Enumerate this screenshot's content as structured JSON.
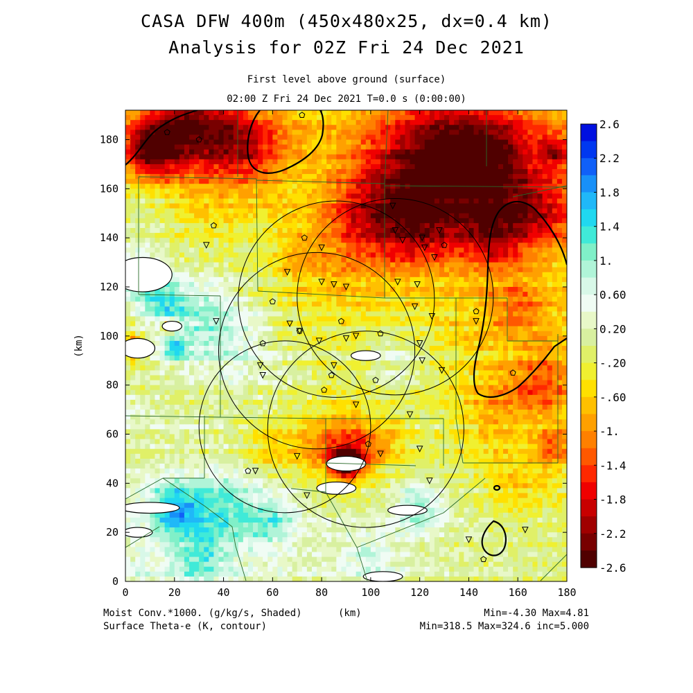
{
  "header": {
    "title_line1": "CASA DFW 400m (450x480x25, dx=0.4 km)",
    "title_line2": "Analysis for 02Z Fri 24 Dec 2021",
    "subtitle_line1": "First level above ground (surface)",
    "subtitle_line2": "02:00 Z Fri 24 Dec 2021    T=0.0 s (0:00:00)"
  },
  "footer": {
    "shaded_label": "Moist Conv.*1000. (g/kg/s, Shaded)",
    "contour_label": "Surface Theta-e (K, contour)",
    "x_unit": "(km)",
    "shaded_minmax": "Min=-4.30 Max=4.81",
    "contour_minmax": "Min=318.5 Max=324.6 inc=5.000"
  },
  "chart_data": {
    "type": "heatmap",
    "xlabel": "",
    "ylabel": "(km)",
    "xlim": [
      0,
      180
    ],
    "ylim": [
      0,
      192
    ],
    "x_ticks": [
      0,
      20,
      40,
      60,
      80,
      100,
      120,
      140,
      160,
      180
    ],
    "y_ticks": [
      0,
      20,
      40,
      60,
      80,
      100,
      120,
      140,
      160,
      180
    ],
    "colorbar": {
      "labels": [
        "2.6",
        "2.2",
        "1.8",
        "1.4",
        "1.",
        "0.60",
        "0.20",
        "-.20",
        "-.60",
        "-1.",
        "-1.4",
        "-1.8",
        "-2.2",
        "-2.6"
      ],
      "colors": [
        "#0010e0",
        "#0038f0",
        "#1060f8",
        "#1890f8",
        "#20b8f8",
        "#20d8f0",
        "#40ead8",
        "#80f0c8",
        "#b0f4d8",
        "#d8f8e8",
        "#f0fcf4",
        "#e8f8c8",
        "#d8f0a0",
        "#e0f068",
        "#f0f030",
        "#ffe000",
        "#ffc000",
        "#ffa000",
        "#ff8000",
        "#ff5800",
        "#ff2800",
        "#f00000",
        "#c80000",
        "#a00000",
        "#780000",
        "#500000"
      ]
    },
    "radar_rings_center_radius": [
      [
        86,
        115,
        40
      ],
      [
        65,
        63,
        35
      ],
      [
        78,
        94,
        40
      ],
      [
        110,
        116,
        40
      ],
      [
        98,
        62,
        40
      ]
    ],
    "stations_triangle": [
      [
        109,
        153
      ],
      [
        110,
        143
      ],
      [
        113,
        139
      ],
      [
        121,
        140
      ],
      [
        122,
        136
      ],
      [
        128,
        143
      ],
      [
        126,
        132
      ],
      [
        80,
        136
      ],
      [
        33,
        137
      ],
      [
        66,
        126
      ],
      [
        80,
        122
      ],
      [
        85,
        121
      ],
      [
        90,
        120
      ],
      [
        111,
        122
      ],
      [
        119,
        121
      ],
      [
        118,
        112
      ],
      [
        125,
        108
      ],
      [
        143,
        106
      ],
      [
        67,
        105
      ],
      [
        71,
        102
      ],
      [
        120,
        97
      ],
      [
        121,
        90
      ],
      [
        129,
        86
      ],
      [
        37,
        106
      ],
      [
        55,
        88
      ],
      [
        56,
        84
      ],
      [
        79,
        98
      ],
      [
        85,
        88
      ],
      [
        90,
        99
      ],
      [
        94,
        100
      ],
      [
        94,
        72
      ],
      [
        116,
        68
      ],
      [
        104,
        52
      ],
      [
        120,
        54
      ],
      [
        124,
        41
      ],
      [
        70,
        51
      ],
      [
        53,
        45
      ],
      [
        74,
        35
      ],
      [
        140,
        17
      ],
      [
        163,
        21
      ]
    ],
    "stations_pentagon": [
      [
        17,
        183
      ],
      [
        36,
        145
      ],
      [
        73,
        140
      ],
      [
        60,
        114
      ],
      [
        88,
        106
      ],
      [
        56,
        97
      ],
      [
        104,
        101
      ],
      [
        71,
        102
      ],
      [
        84,
        84
      ],
      [
        102,
        82
      ],
      [
        81,
        78
      ],
      [
        99,
        56
      ],
      [
        50,
        45
      ],
      [
        158,
        85
      ],
      [
        143,
        110
      ],
      [
        130,
        137
      ],
      [
        146,
        9
      ],
      [
        30,
        180
      ],
      [
        72,
        190
      ]
    ]
  }
}
